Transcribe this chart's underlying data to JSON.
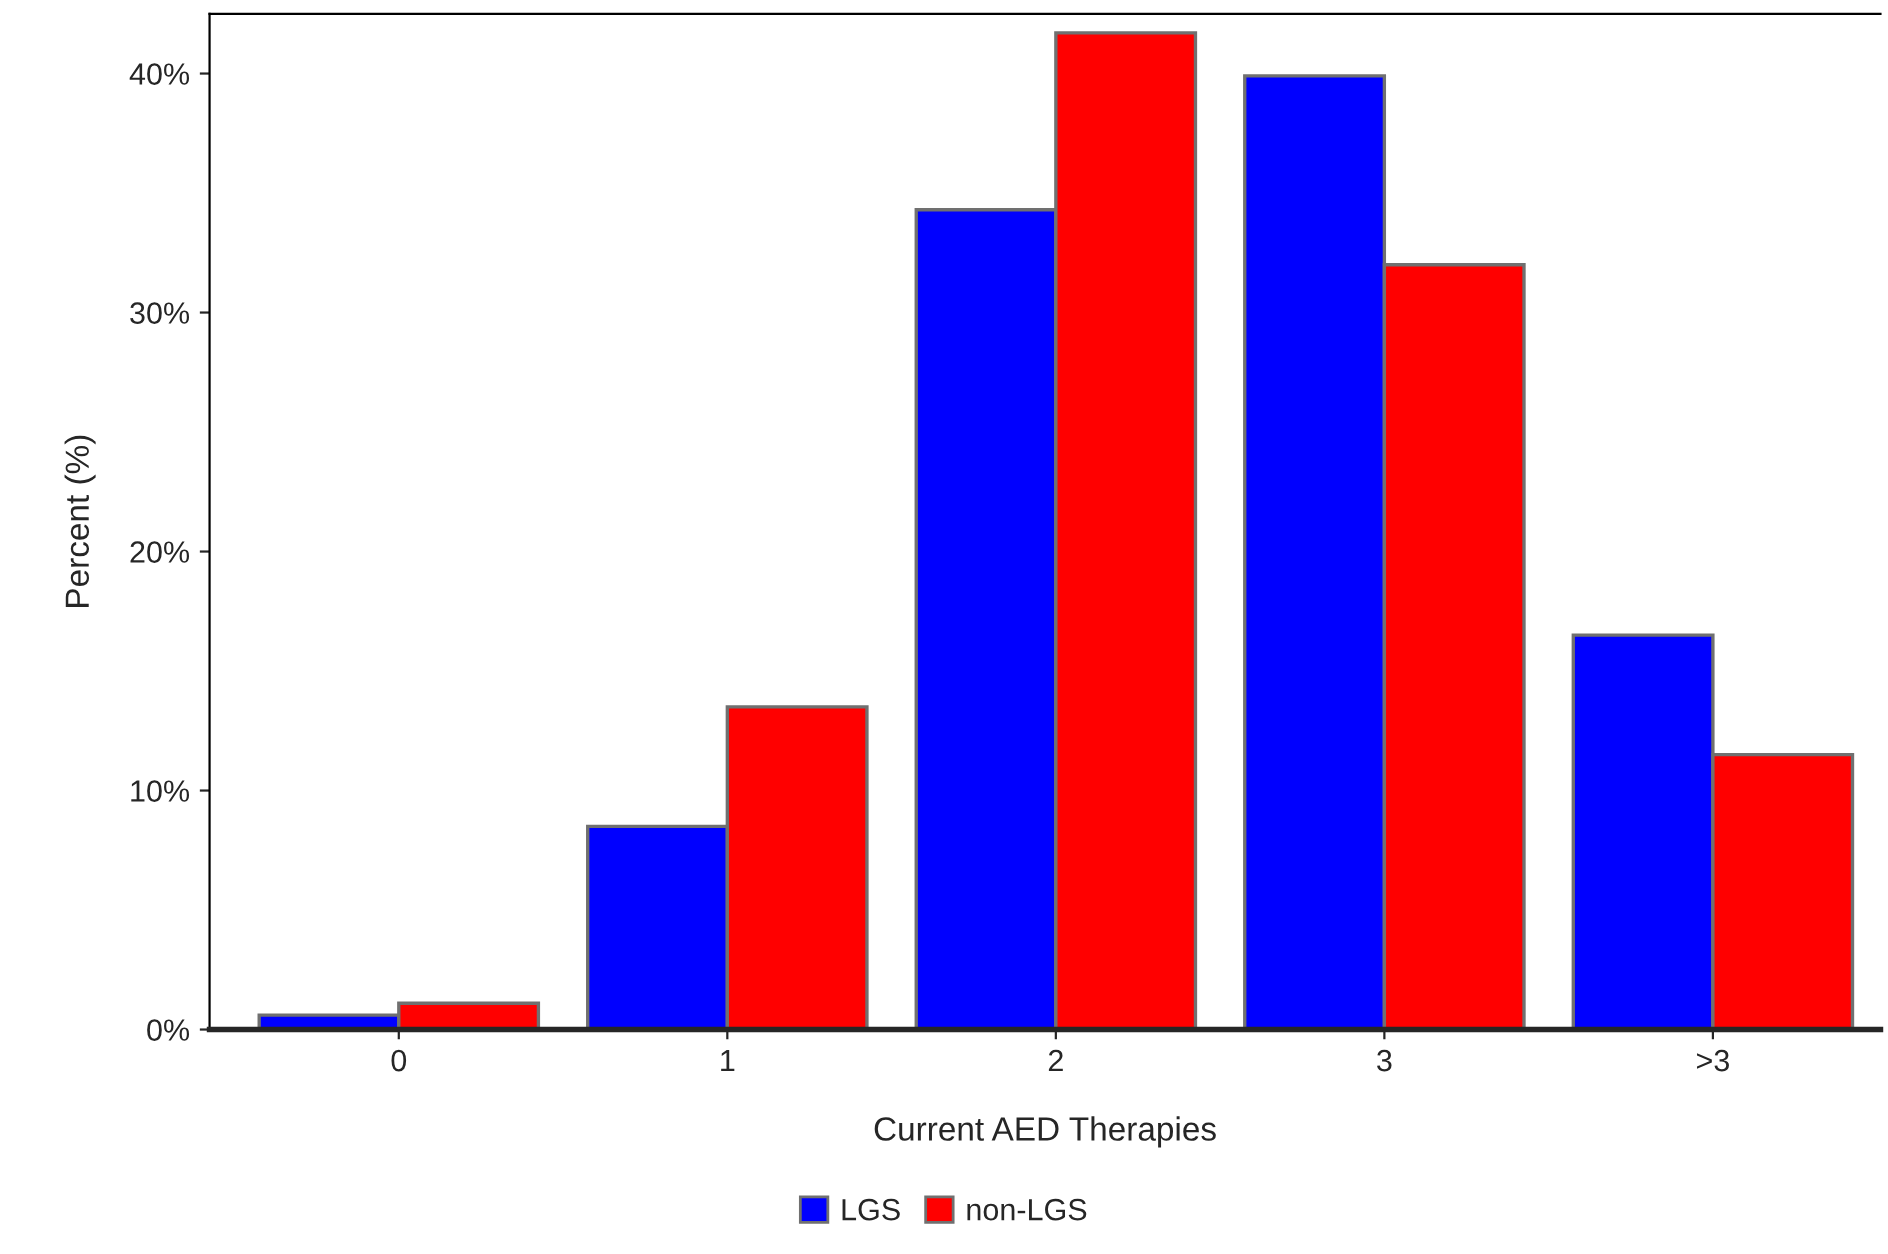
{
  "chart_data": {
    "type": "bar",
    "xlabel": "Current AED Therapies",
    "ylabel": "Percent (%)",
    "categories": [
      "0",
      "1",
      "2",
      "3",
      ">3"
    ],
    "series": [
      {
        "name": "LGS",
        "color": "#0000ff",
        "values": [
          0.6,
          8.5,
          34.3,
          39.9,
          16.5
        ]
      },
      {
        "name": "non-LGS",
        "color": "#ff0000",
        "values": [
          1.1,
          13.5,
          41.7,
          32.0,
          11.5
        ]
      }
    ],
    "ylim": [
      0,
      42.5
    ],
    "yticks": [
      {
        "value": 0,
        "label": "0%"
      },
      {
        "value": 10,
        "label": "10%"
      },
      {
        "value": 20,
        "label": "20%"
      },
      {
        "value": 30,
        "label": "30%"
      },
      {
        "value": 40,
        "label": "40%"
      }
    ],
    "grid": false,
    "legend": "bottom"
  }
}
